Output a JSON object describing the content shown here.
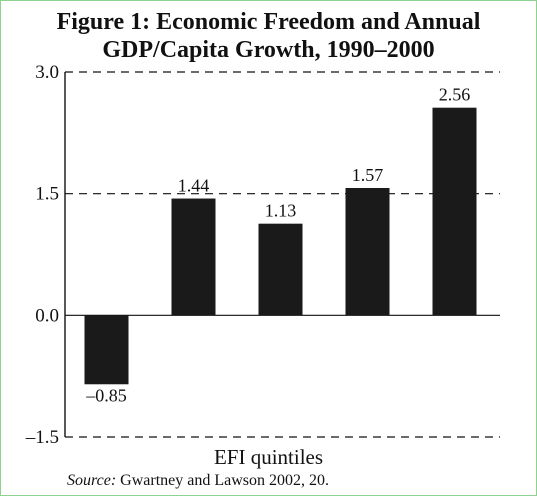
{
  "chart_data": {
    "type": "bar",
    "title_lines": [
      "Figure 1: Economic Freedom and Annual",
      "GDP/Capita Growth, 1990–2000"
    ],
    "xlabel": "EFI quintiles",
    "ylabel": "",
    "categories": [
      "",
      "",
      "",
      "",
      ""
    ],
    "values": [
      -0.85,
      1.44,
      1.13,
      1.57,
      2.56
    ],
    "value_labels": [
      "–0.85",
      "1.44",
      "1.13",
      "1.57",
      "2.56"
    ],
    "ylim": [
      -1.5,
      3.0
    ],
    "yticks": [
      {
        "value": 3.0,
        "label": "3.0"
      },
      {
        "value": 1.5,
        "label": "1.5"
      },
      {
        "value": 0.0,
        "label": "0.0"
      },
      {
        "value": -1.5,
        "label": "–1.5"
      }
    ],
    "bar_color": "#1a1a1a",
    "grid": "dashed horizontal at ticks"
  },
  "source": {
    "label": "Source:",
    "text": " Gwartney and Lawson 2002, 20."
  }
}
